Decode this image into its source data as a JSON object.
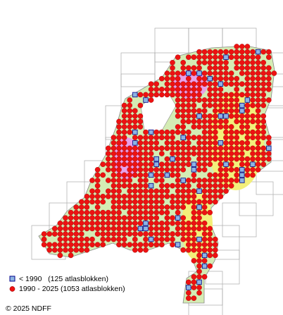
{
  "legend": [
    {
      "label": "< 1990   (125 atlasblokken)"
    },
    {
      "label": "1990 - 2025 (1053 atlasblokken)"
    }
  ],
  "copyright": "© 2025 NDFF"
}
